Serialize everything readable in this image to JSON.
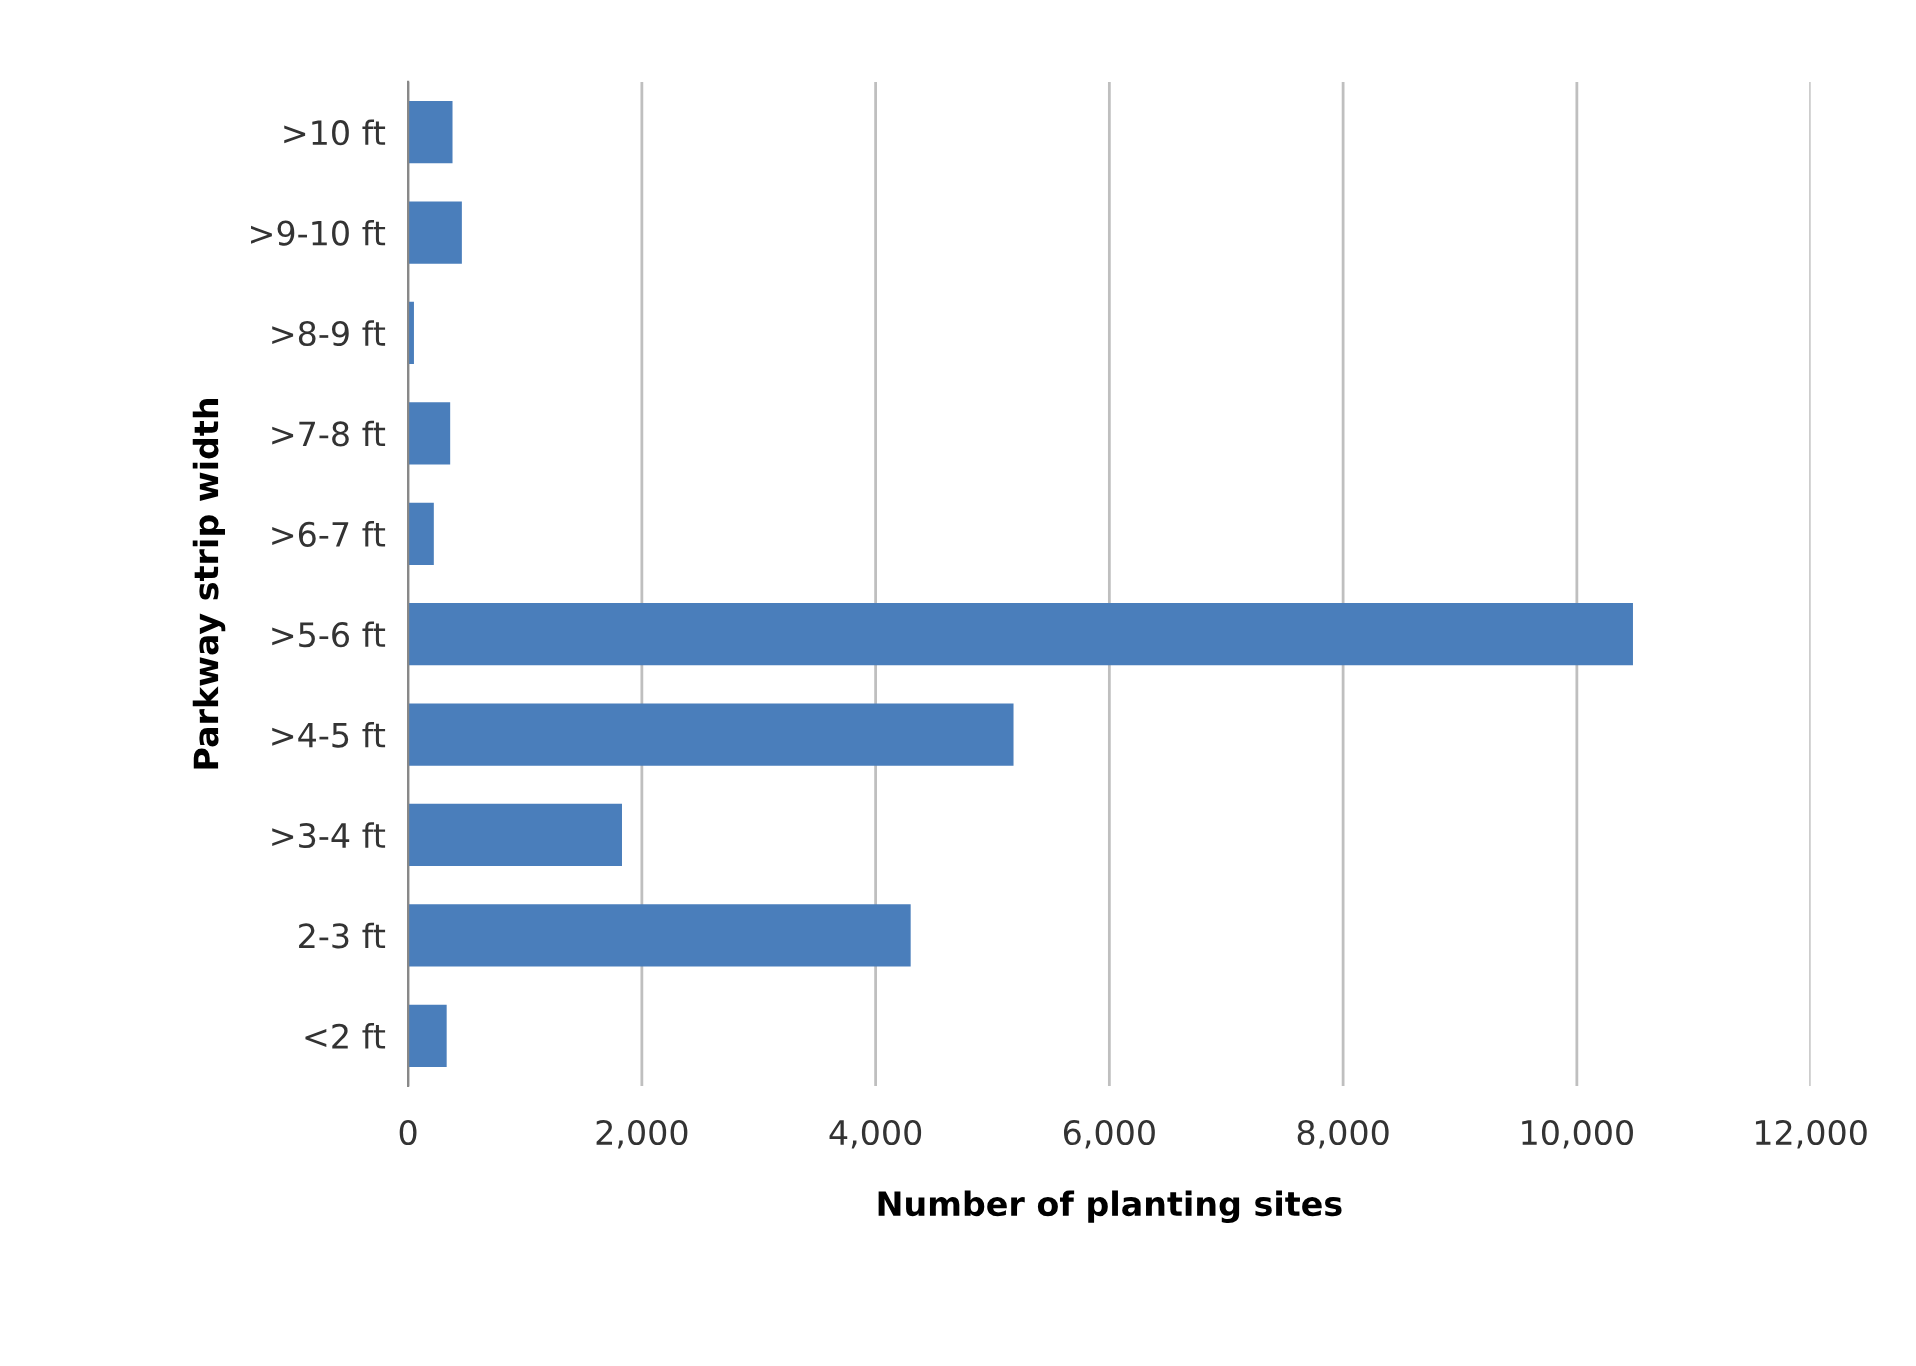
{
  "chart_data": {
    "type": "bar",
    "orientation": "horizontal",
    "categories": [
      ">10 ft",
      ">9-10 ft",
      ">8-9 ft",
      ">7-8 ft",
      ">6-7 ft",
      ">5-6 ft",
      ">4-5 ft",
      ">3-4 ft",
      "2-3 ft",
      "<2 ft"
    ],
    "values": [
      380,
      460,
      50,
      360,
      220,
      10480,
      5180,
      1830,
      4300,
      330
    ],
    "color": "#4a7ebb",
    "xlabel": "Number of planting sites",
    "ylabel": "Parkway strip width",
    "xlim": [
      0,
      12000
    ],
    "xticks": [
      {
        "value": 0,
        "label": "0"
      },
      {
        "value": 2000,
        "label": "2,000"
      },
      {
        "value": 4000,
        "label": "4,000"
      },
      {
        "value": 6000,
        "label": "6,000"
      },
      {
        "value": 8000,
        "label": "8,000"
      },
      {
        "value": 10000,
        "label": "10,000"
      },
      {
        "value": 12000,
        "label": "12,000"
      }
    ],
    "grid": "x",
    "legend": false
  }
}
